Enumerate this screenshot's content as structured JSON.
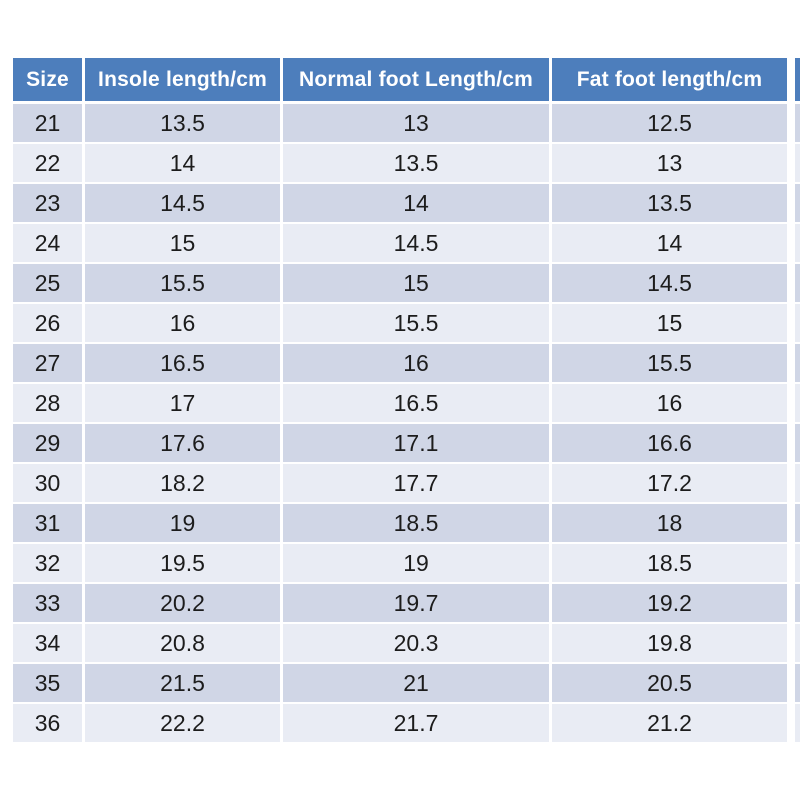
{
  "colors": {
    "page_bg": "#ffffff",
    "header_bg": "#4d7ebc",
    "header_text": "#ffffff",
    "band_dark": "#d0d6e6",
    "band_light": "#e9ecf4",
    "body_text": "#1c1c1c",
    "separator": "#ffffff"
  },
  "chart_data": {
    "type": "table",
    "columns": [
      "Size",
      "Insole length/cm",
      "Normal foot Length/cm",
      "Fat foot length/cm"
    ],
    "rows": [
      [
        21,
        13.5,
        13,
        12.5
      ],
      [
        22,
        14,
        13.5,
        13
      ],
      [
        23,
        14.5,
        14,
        13.5
      ],
      [
        24,
        15,
        14.5,
        14
      ],
      [
        25,
        15.5,
        15,
        14.5
      ],
      [
        26,
        16,
        15.5,
        15
      ],
      [
        27,
        16.5,
        16,
        15.5
      ],
      [
        28,
        17,
        16.5,
        16
      ],
      [
        29,
        17.6,
        17.1,
        16.6
      ],
      [
        30,
        18.2,
        17.7,
        17.2
      ],
      [
        31,
        19,
        18.5,
        18
      ],
      [
        32,
        19.5,
        19,
        18.5
      ],
      [
        33,
        20.2,
        19.7,
        19.2
      ],
      [
        34,
        20.8,
        20.3,
        19.8
      ],
      [
        35,
        21.5,
        21,
        20.5
      ],
      [
        36,
        22.2,
        21.7,
        21.2
      ]
    ]
  }
}
